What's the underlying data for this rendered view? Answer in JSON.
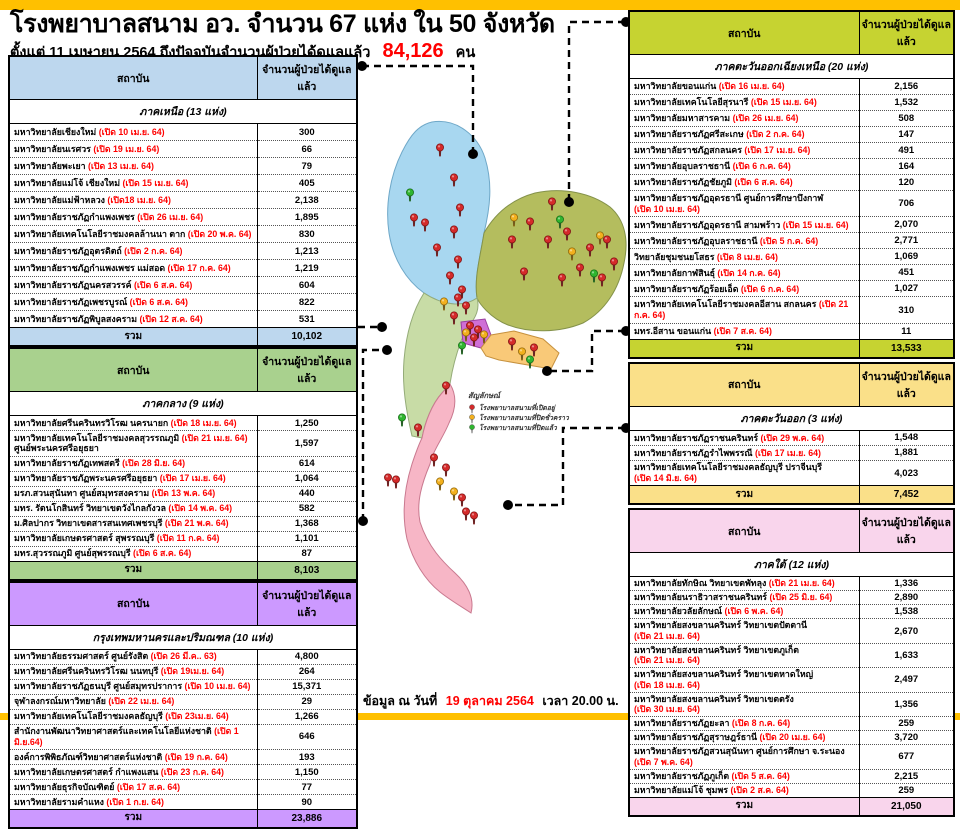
{
  "page": {
    "title": "โรงพยาบาลสนาม อว.  จำนวน 67 แห่ง ใน 50 จังหวัด",
    "subtitle_prefix": "ตั้งแต่  11 เมษายน 2564 ถึงปัจจุบันจำนวนผู้ป่วยได้ดูแลแล้ว",
    "subtitle_number": "84,126",
    "subtitle_suffix": "คน",
    "footer_prefix": "ข้อมูล ณ วันที่",
    "footer_date": "19  ตุลาคม 2564",
    "footer_suffix": "เวลา  20.00 น."
  },
  "colors": {
    "banner": "#FFC000",
    "accent_red": "#FF0000",
    "north": "#BDD7EE",
    "central": "#A9D18E",
    "bangkok": "#CC99FF",
    "northeast": "#C6D331",
    "east": "#FAE089",
    "south": "#F9D5EC"
  },
  "table_header": {
    "institution": "สถาบัน",
    "count": "จำนวนผู้ป่วยได้ดูแลแล้ว"
  },
  "total_label": "รวม",
  "legend": {
    "title": "สัญลักษณ์",
    "items": [
      {
        "pin": "red-pin-icon",
        "color": "#D42A2A",
        "label": "โรงพยาบาลสนามที่เปิดอยู่"
      },
      {
        "pin": "yellow-pin-icon",
        "color": "#F2B01E",
        "label": "โรงพยาบาลสนามที่ปิดชั่วคราว"
      },
      {
        "pin": "green-pin-icon",
        "color": "#2FB52F",
        "label": "โรงพยาบาลสนามที่ปิดแล้ว"
      }
    ]
  },
  "tables": [
    {
      "id": "north",
      "region": "ภาคเหนือ (13 แห่ง)",
      "color": "#BDD7EE",
      "rows": [
        {
          "name": "มหาวิทยาลัยเชียงใหม่",
          "open": "(เปิด 10 เม.ย. 64)",
          "value": "300"
        },
        {
          "name": "มหาวิทยาลัยนเรศวร",
          "open": "(เปิด 19 เม.ย. 64)",
          "value": "66"
        },
        {
          "name": "มหาวิทยาลัยพะเยา",
          "open": "(เปิด 13 เม.ย. 64)",
          "value": "79"
        },
        {
          "name": "มหาวิทยาลัยแม่โจ้  เชียงใหม่",
          "open": "(เปิด 15 เม.ย. 64)",
          "value": "405"
        },
        {
          "name": "มหาวิทยาลัยแม่ฟ้าหลวง",
          "open": "(เปิด18 เม.ย. 64)",
          "value": "2,138"
        },
        {
          "name": "มหาวิทยาลัยราชภัฏกำแพงเพชร",
          "open": "(เปิด 26 เม.ย. 64)",
          "value": "1,895"
        },
        {
          "name": "มหาวิทยาลัยเทคโนโลยีราชมงคลล้านนา  ตาก",
          "open": "(เปิด 20 พ.ค. 64)",
          "value": "830"
        },
        {
          "name": "มหาวิทยาลัยราชภัฏอุตรดิตถ์",
          "open": "(เปิด 2 ก.ค. 64)",
          "value": "1,213"
        },
        {
          "name": "มหาวิทยาลัยราชภัฏกำแพงเพชร  แม่สอด",
          "open": "(เปิด 17 ก.ค. 64)",
          "value": "1,219"
        },
        {
          "name": "มหาวิทยาลัยราชภัฏนครสวรรค์",
          "open": "(เปิด 6 ส.ค. 64)",
          "value": "604"
        },
        {
          "name": "มหาวิทยาลัยราชภัฏเพชรบูรณ์",
          "open": "(เปิด 6 ส.ค. 64)",
          "value": "822"
        },
        {
          "name": "มหาวิทยาลัยราชภัฏพิบูลสงคราม",
          "open": "(เปิด 12 ส.ค. 64)",
          "value": "531"
        }
      ],
      "total": "10,102"
    },
    {
      "id": "central",
      "region": "ภาคกลาง (9 แห่ง)",
      "color": "#A9D18E",
      "rows": [
        {
          "name": "มหาวิทยาลัยศรีนครินทรวิโรฒ นครนายก",
          "open": "(เปิด 18 เม.ย. 64)",
          "value": "1,250"
        },
        {
          "name": "มหาวิทยาลัยเทคโนโลยีราชมงคลสุวรรณภูมิ",
          "open": "(เปิด 21 เม.ย. 64)",
          "post": "ศูนย์พระนครศรีอยุธยา",
          "value": "1,597"
        },
        {
          "name": "มหาวิทยาลัยราชภัฏเทพสตรี",
          "open": "(เปิด 28 มิ.ย. 64)",
          "value": "614"
        },
        {
          "name": "มหาวิทยาลัยราชภัฏพระนครศรีอยุธยา",
          "open": "(เปิด 17 เม.ย. 64)",
          "value": "1,064"
        },
        {
          "name": "มรภ.สวนสุนันทา ศูนย์สมุทรสงคราม",
          "open": "(เปิด 13 พ.ค. 64)",
          "value": "440"
        },
        {
          "name": "มทร. รัตนโกสินทร์   วิทยาเขตวังไกลกังวล",
          "open": "(เปิด 14 พ.ค. 64)",
          "value": "582"
        },
        {
          "name": "ม.ศิลปากร วิทยาเขตสารสนเทศเพชรบุรี",
          "open": "(เปิด 21 พ.ค. 64)",
          "value": "1,368"
        },
        {
          "name": "มหาวิทยาลัยเกษตรศาสตร์  สุพรรณบุรี",
          "open": "(เปิด 11 ก.ค. 64)",
          "value": "1,101"
        },
        {
          "name": "มทร.สุวรรณภูมิ ศูนย์สุพรรณบุรี",
          "open": "(เปิด 6 ส.ค. 64)",
          "value": "87"
        }
      ],
      "total": "8,103"
    },
    {
      "id": "bangkok",
      "region": "กรุงเทพมหานครและปริมณฑล (10 แห่ง)",
      "color": "#CC99FF",
      "rows": [
        {
          "name": "มหาวิทยาลัยธรรมศาสตร์ ศูนย์รังสิต",
          "open": "(เปิด 26 มี.ค.. 63)",
          "value": "4,800"
        },
        {
          "name": "มหาวิทยาลัยศรีนครินทรวิโรฒ นนทบุรี",
          "open": "(เปิด 19เม.ย. 64)",
          "value": "264"
        },
        {
          "name": "มหาวิทยาลัยราชภัฏธนบุรี ศูนย์สมุทรปราการ",
          "open": "(เปิด 10 เม.ย. 64)",
          "value": "15,371"
        },
        {
          "name": "จุฬาลงกรณ์มหาวิทยาลัย",
          "open": "(เปิด 22 เม.ย. 64)",
          "value": "29"
        },
        {
          "name": "มหาวิทยาลัยเทคโนโลยีราชมงคลธัญบุรี",
          "open": "(เปิด 23เม.ย. 64)",
          "value": "1,266"
        },
        {
          "name": "สำนักงานพัฒนาวิทยาศาสตร์และเทคโนโลยีแห่งชาติ",
          "open": "(เปิด 1 มิ.ย.64)",
          "value": "646"
        },
        {
          "name": "องค์การพิพิธภัณฑ์วิทยาศาสตร์แห่งชาติ",
          "open": "(เปิด  19 ก.ค. 64)",
          "value": "193"
        },
        {
          "name": "มหาวิทยาลัยเกษตรศาสตร์  กำแพงแสน",
          "open": "(เปิด 23 ก.ค. 64)",
          "value": "1,150"
        },
        {
          "name": "มหาวิทยาลัยธุรกิจบัณฑิตย์",
          "open": "(เปิด 17 ส.ค. 64)",
          "value": "77"
        },
        {
          "name": "มหาวิทยาลัยรามคำแหง",
          "open": "(เปิด 1 ก.ย. 64)",
          "value": "90"
        }
      ],
      "total": "23,886"
    },
    {
      "id": "northeast",
      "region": "ภาคตะวันออกเฉียงเหนือ  (20 แห่ง)",
      "color": "#C6D331",
      "rows": [
        {
          "name": "มหาวิทยาลัยขอนแก่น",
          "open": "(เปิด 16 เม.ย. 64)",
          "value": "2,156"
        },
        {
          "name": "มหาวิทยาลัยเทคโนโลยีสุรนารี",
          "open": "(เปิด 15 เม.ย. 64)",
          "value": "1,532"
        },
        {
          "name": "มหาวิทยาลัยมหาสารคาม",
          "open": "(เปิด 26 เม.ย. 64)",
          "value": "508"
        },
        {
          "name": "มหาวิทยาลัยราชภัฏศรีสะเกษ",
          "open": "(เปิด 2 ก.ค. 64)",
          "value": "147"
        },
        {
          "name": "มหาวิทยาลัยราชภัฏสกลนคร",
          "open": "(เปิด 17 เม.ย. 64)",
          "value": "491"
        },
        {
          "name": "มหาวิทยาลัยอุบลราชธานี",
          "open": "(เปิด 6 ก.ค. 64)",
          "value": "164"
        },
        {
          "name": "มหาวิทยาลัยราชภัฏชัยภูมิ",
          "open": "(เปิด 6 ส.ค. 64)",
          "value": "120"
        },
        {
          "name": "มหาวิทยาลัยราชภัฏอุดรธานี ศูนย์การศึกษาบึงกาฬ",
          "open": "(เปิด 10 เม.ย. 64)",
          "wrap": true,
          "value": "706"
        },
        {
          "name": "มหาวิทยาลัยราชภัฏอุดรธานี สามพร้าว",
          "open": "(เปิด 15 เม.ย. 64)",
          "value": "2,070"
        },
        {
          "name": "มหาวิทยาลัยราชภัฏอุบลราชธานี",
          "open": "(เปิด 5 ก.ค. 64)",
          "value": "2,771"
        },
        {
          "name": "วิทยาลัยชุมชนยโสธร",
          "open": "(เปิด 8 เม.ย. 64)",
          "value": "1,069"
        },
        {
          "name": "มหาวิทยาลัยกาฬสินธุ์",
          "open": "(เปิด 14 ก.ค. 64)",
          "value": "451"
        },
        {
          "name": "มหาวิทยาลัยราชภัฏร้อยเอ็ด",
          "open": "(เปิด 6 ก.ค. 64)",
          "value": "1,027"
        },
        {
          "name": "มหาวิทยาลัยเทคโนโลยีราชมงคลอีสาน สกลนคร",
          "open": "(เปิด 21 ก.ค. 64)",
          "value": "310"
        },
        {
          "name": "มทร.อีสาน ขอนแก่น",
          "open": "(เปิด 7 ส.ค. 64)",
          "value": "11"
        }
      ],
      "total": "13,533"
    },
    {
      "id": "east",
      "region": "ภาคตะวันออก (3 แห่ง)",
      "color": "#FAE089",
      "rows": [
        {
          "name": "มหาวิทยาลัยราชภัฏราชนครินทร์",
          "open": "(เปิด 29 พ.ค. 64)",
          "value": "1,548"
        },
        {
          "name": "มหาวิทยาลัยราชภัฏรำไพพรรณี",
          "open": "(เปิด 17 เม.ย. 64)",
          "value": "1,881"
        },
        {
          "name": "มหาวิทยาลัยเทคโนโลยีราชมงคลธัญบุรี ปราจีนบุรี",
          "open": "(เปิด 14 มิ.ย. 64)",
          "wrap": true,
          "value": "4,023"
        }
      ],
      "total": "7,452"
    },
    {
      "id": "south",
      "region": "ภาคใต้  (12 แห่ง)",
      "color": "#F9D5EC",
      "rows": [
        {
          "name": "มหาวิทยาลัยทักษิณ  วิทยาเขตพัทลุง",
          "open": "(เปิด 21 เม.ย. 64)",
          "value": "1,336"
        },
        {
          "name": "มหาวิทยาลัยนราธิวาสราชนครินทร์",
          "open": "(เปิด 25 มิ.ย. 64)",
          "value": "2,890"
        },
        {
          "name": "มหาวิทยาลัยวลัยลักษณ์",
          "open": "(เปิด 6 พ.ค. 64)",
          "value": "1,538"
        },
        {
          "name": "มหาวิทยาลัยสงขลานครินทร์  วิทยาเขตปัตตานี",
          "open": "(เปิด 21 เม.ย. 64)",
          "wrap": true,
          "value": "2,670"
        },
        {
          "name": "มหาวิทยาลัยสงขลานครินทร์  วิทยาเขตภูเก็ต",
          "open": "(เปิด 21 เม.ย. 64)",
          "wrap": true,
          "value": "1,633"
        },
        {
          "name": "มหาวิทยาลัยสงขลานครินทร์   วิทยาเขตหาดใหญ่",
          "open": "(เปิด 18 เม.ย. 64)",
          "wrap": true,
          "value": "2,497"
        },
        {
          "name": "มหาวิทยาลัยสงขลานครินทร์  วิทยาเขตตรัง",
          "open": "(เปิด  30 เม.ย. 64)",
          "wrap": true,
          "value": "1,356"
        },
        {
          "name": "มหาวิทยาลัยราชภัฏยะลา",
          "open": "(เปิด  8 ก.ค. 64)",
          "value": "259"
        },
        {
          "name": "มหาวิทยาลัยราชภัฏสุราษฎร์ธานี",
          "open": "(เปิด 20 เม.ย. 64)",
          "value": "3,720"
        },
        {
          "name": "มหาวิทยาลัยราชภัฏสวนสุนันทา  ศูนย์การศึกษา จ.ระนอง",
          "open": "(เปิด 7 พ.ค. 64)",
          "wrap": true,
          "value": "677"
        },
        {
          "name": "มหาวิทยาลัยราชภัฏภูเก็ต",
          "open": "(เปิด 5 ส.ค. 64)",
          "value": "2,215"
        },
        {
          "name": "มหาวิทยาลัยแม่โจ้  ชุมพร",
          "open": "(เปิด 2 ส.ค. 64)",
          "value": "259"
        }
      ],
      "total": "21,050"
    }
  ]
}
